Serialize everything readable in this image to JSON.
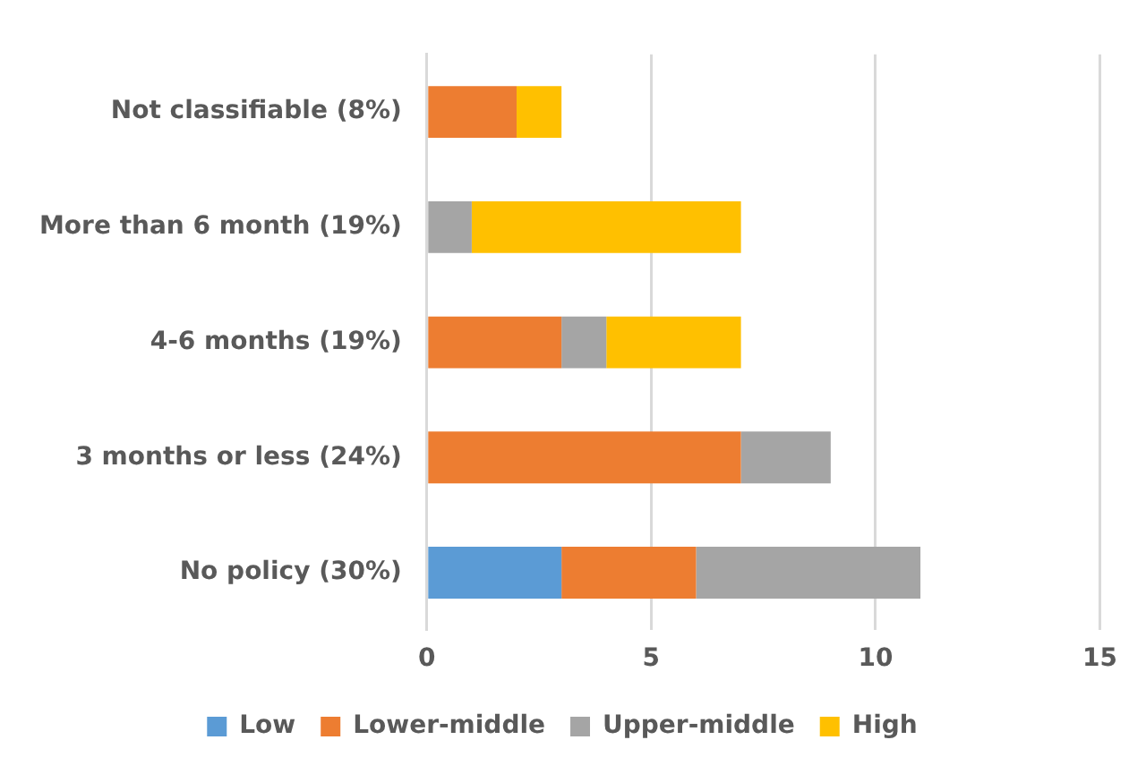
{
  "chart_data": {
    "type": "bar",
    "orientation": "horizontal",
    "stacked": true,
    "categories": [
      "Not classifiable (8%)",
      "More than 6 month (19%)",
      "4-6 months (19%)",
      "3 months or less (24%)",
      "No policy (30%)"
    ],
    "series": [
      {
        "name": "Low",
        "color": "#5b9bd5",
        "values": [
          0,
          0,
          0,
          0,
          3
        ]
      },
      {
        "name": "Lower-middle",
        "color": "#ed7d31",
        "values": [
          2,
          0,
          3,
          7,
          3
        ]
      },
      {
        "name": "Upper-middle",
        "color": "#a5a5a5",
        "values": [
          0,
          1,
          1,
          2,
          5
        ]
      },
      {
        "name": "High",
        "color": "#ffc000",
        "values": [
          1,
          6,
          3,
          0,
          0
        ]
      }
    ],
    "xlim": [
      0,
      15
    ],
    "xticks": [
      0,
      5,
      10,
      15
    ],
    "grid": "x",
    "legend": "bottom"
  }
}
